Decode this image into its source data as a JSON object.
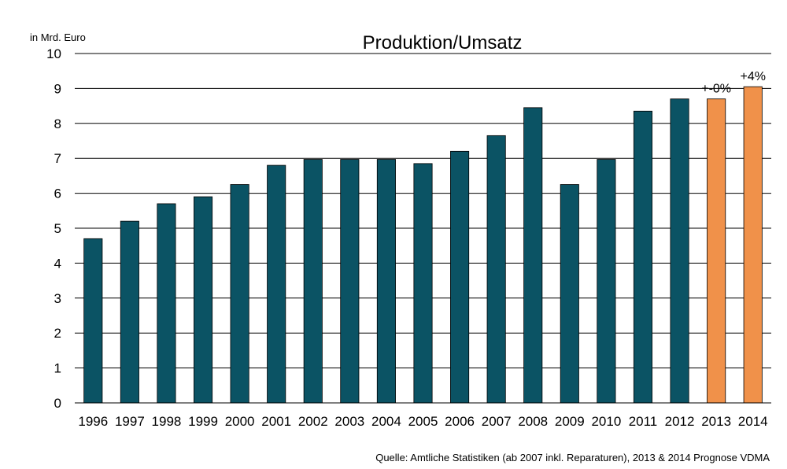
{
  "chart_data": {
    "type": "bar",
    "title": "Produktion/Umsatz",
    "ylabel": "in Mrd. Euro",
    "xlabel": "",
    "ylim": [
      0,
      10
    ],
    "yticks": [
      0,
      1,
      2,
      3,
      4,
      5,
      6,
      7,
      8,
      9,
      10
    ],
    "grid": true,
    "categories": [
      "1996",
      "1997",
      "1998",
      "1999",
      "2000",
      "2001",
      "2002",
      "2003",
      "2004",
      "2005",
      "2006",
      "2007",
      "2008",
      "2009",
      "2010",
      "2011",
      "2012",
      "2013",
      "2014"
    ],
    "values": [
      4.7,
      5.2,
      5.7,
      5.9,
      6.25,
      6.8,
      6.97,
      6.97,
      6.97,
      6.85,
      7.2,
      7.65,
      8.45,
      6.25,
      6.97,
      8.35,
      8.7,
      8.7,
      9.05
    ],
    "bar_colors": [
      "#0b5364",
      "#0b5364",
      "#0b5364",
      "#0b5364",
      "#0b5364",
      "#0b5364",
      "#0b5364",
      "#0b5364",
      "#0b5364",
      "#0b5364",
      "#0b5364",
      "#0b5364",
      "#0b5364",
      "#0b5364",
      "#0b5364",
      "#0b5364",
      "#0b5364",
      "#f0914a",
      "#f0914a"
    ],
    "annotations": [
      {
        "category": "2013",
        "text": "+-0%"
      },
      {
        "category": "2014",
        "text": "+4%"
      }
    ],
    "source": "Quelle: Amtliche Statistiken (ab 2007 inkl. Reparaturen), 2013 & 2014 Prognose VDMA"
  }
}
